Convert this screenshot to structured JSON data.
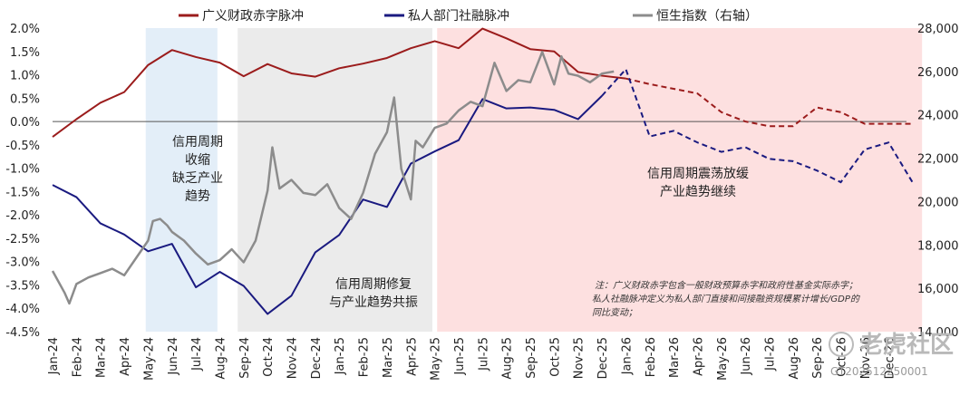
{
  "chart_data": {
    "type": "line",
    "title": "",
    "legend": [
      {
        "key": "fiscal",
        "label": "广义财政赤字脉冲",
        "color": "#9b1c1c"
      },
      {
        "key": "private",
        "label": "私人部门社融脉冲",
        "color": "#1a1a80"
      },
      {
        "key": "hsi",
        "label": "恒生指数（右轴）",
        "color": "#8c8c8c"
      }
    ],
    "x_labels": [
      "Jan-24",
      "Feb-24",
      "Mar-24",
      "Apr-24",
      "May-24",
      "Jun-24",
      "Jul-24",
      "Aug-24",
      "Sep-24",
      "Oct-24",
      "Nov-24",
      "Dec-24",
      "Jan-25",
      "Feb-25",
      "Mar-25",
      "Apr-25",
      "May-25",
      "Jun-25",
      "Jul-25",
      "Aug-25",
      "Sep-25",
      "Oct-25",
      "Nov-25",
      "Dec-25",
      "Jan-26",
      "Feb-26",
      "Mar-26",
      "Apr-26",
      "May-26",
      "Jun-26",
      "Jul-26",
      "Aug-26",
      "Sep-26",
      "Oct-26",
      "Nov-26",
      "Dec-26"
    ],
    "y_left": {
      "min": -4.5,
      "max": 2.0,
      "ticks": [
        "-4.5%",
        "-4.0%",
        "-3.5%",
        "-3.0%",
        "-2.5%",
        "-2.0%",
        "-1.5%",
        "-1.0%",
        "-0.5%",
        "0.0%",
        "0.5%",
        "1.0%",
        "1.5%",
        "2.0%"
      ]
    },
    "y_right": {
      "min": 14000,
      "max": 28000,
      "ticks": [
        "14,000",
        "16,000",
        "18,000",
        "20,000",
        "22,000",
        "24,000",
        "26,000",
        "28,000"
      ]
    },
    "series": [
      {
        "name": "广义财政赤字脉冲",
        "axis": "left",
        "color": "#9b1c1c",
        "x": [
          0,
          1,
          2,
          3,
          4,
          5,
          6,
          7,
          8,
          9,
          10,
          11,
          12,
          13,
          14,
          15,
          16,
          17,
          18,
          19,
          20,
          21,
          22,
          23,
          24,
          25,
          26,
          27,
          28,
          29,
          30,
          31,
          32,
          33,
          34,
          35,
          36
        ],
        "values": [
          -0.33,
          0.05,
          0.4,
          0.63,
          1.21,
          1.53,
          1.38,
          1.26,
          0.97,
          1.23,
          1.03,
          0.96,
          1.14,
          1.24,
          1.36,
          1.57,
          1.72,
          1.57,
          1.99,
          1.78,
          1.55,
          1.5,
          1.06,
          0.98,
          0.92,
          0.8,
          0.7,
          0.6,
          0.2,
          0.0,
          -0.1,
          -0.1,
          0.3,
          0.2,
          -0.05,
          -0.05,
          -0.05
        ],
        "forecast_from": 24
      },
      {
        "name": "私人部门社融脉冲",
        "axis": "left",
        "color": "#1a1a80",
        "x": [
          0,
          1,
          2,
          3,
          4,
          5,
          6,
          7,
          8,
          9,
          10,
          11,
          12,
          13,
          14,
          15,
          16,
          17,
          18,
          19,
          20,
          21,
          22,
          23,
          24,
          25,
          26,
          27,
          28,
          29,
          30,
          31,
          32,
          33,
          34,
          35,
          36
        ],
        "values": [
          -1.36,
          -1.62,
          -2.18,
          -2.42,
          -2.78,
          -2.62,
          -3.55,
          -3.22,
          -3.52,
          -4.12,
          -3.73,
          -2.8,
          -2.43,
          -1.67,
          -1.83,
          -0.9,
          -0.64,
          -0.4,
          0.48,
          0.28,
          0.3,
          0.25,
          0.05,
          0.55,
          1.12,
          -0.32,
          -0.2,
          -0.45,
          -0.65,
          -0.55,
          -0.8,
          -0.85,
          -1.05,
          -1.3,
          -0.6,
          -0.45,
          -1.3
        ],
        "forecast_from": 23
      },
      {
        "name": "恒生指数（右轴）",
        "axis": "right",
        "color": "#8c8c8c",
        "x": [
          0,
          0.5,
          0.7,
          1,
          1.5,
          2,
          2.5,
          3,
          3.5,
          4,
          4.2,
          4.5,
          4.8,
          5,
          5.5,
          6,
          6.5,
          7,
          7.5,
          8,
          8.5,
          9,
          9.2,
          9.5,
          10,
          10.5,
          11,
          11.5,
          12,
          12.5,
          13,
          13.5,
          14,
          14.3,
          14.6,
          15,
          15.2,
          15.5,
          16,
          16.5,
          17,
          17.5,
          18,
          18.5,
          19,
          19.5,
          20,
          20.5,
          21,
          21.3,
          21.6,
          22,
          22.5,
          23,
          23.5
        ],
        "values": [
          16800,
          15800,
          15300,
          16200,
          16500,
          16700,
          16900,
          16600,
          17400,
          18200,
          19100,
          19200,
          18900,
          18600,
          18200,
          17600,
          17100,
          17300,
          17800,
          17200,
          18200,
          20500,
          22500,
          20600,
          21000,
          20400,
          20300,
          20800,
          19700,
          19200,
          20400,
          22200,
          23200,
          24800,
          21500,
          20100,
          22800,
          22500,
          23400,
          23600,
          24200,
          24600,
          24400,
          26400,
          25100,
          25600,
          25500,
          26900,
          25400,
          26700,
          25900,
          25800,
          25500,
          25900,
          26000
        ]
      }
    ],
    "shaded_regions": [
      {
        "from": 3.9,
        "to": 6.9,
        "color": "#e3eef8",
        "label": [
          "信用周期",
          "收缩",
          "缺乏产业",
          "趋势"
        ]
      },
      {
        "from": 7.75,
        "to": 15.9,
        "color": "#ebebeb",
        "label": [
          "信用周期修复",
          "与产业趋势共振"
        ]
      },
      {
        "from": 16.1,
        "to": 36.4,
        "color": "#fde0e0",
        "label": [
          "信用周期震荡放缓",
          "产业趋势继续"
        ]
      }
    ],
    "note": [
      "注：广义财政赤字包含一般财政预算赤字和政府性基金实际赤字；",
      "私人社融脉冲定义为私人部门直接和间接融资规模累计增长/GDP的",
      "同比变动；"
    ]
  },
  "watermark": {
    "text": "老虎社区",
    "id": "GT202512250001"
  }
}
